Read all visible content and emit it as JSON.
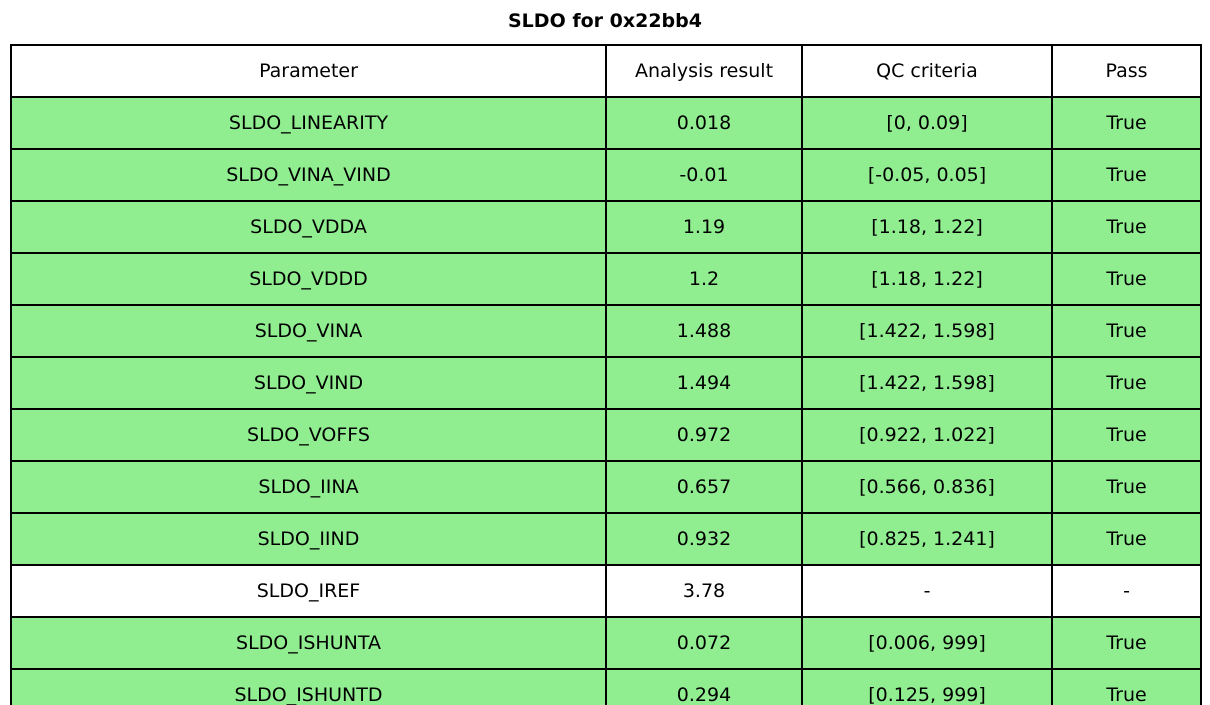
{
  "title": "SLDO for 0x22bb4",
  "colors": {
    "pass_green": "#90ee90",
    "border": "#000000",
    "background": "#ffffff"
  },
  "table": {
    "headers": [
      "Parameter",
      "Analysis result",
      "QC criteria",
      "Pass"
    ],
    "rows": [
      {
        "parameter": "SLDO_LINEARITY",
        "result": "0.018",
        "criteria": "[0, 0.09]",
        "pass": "True",
        "highlight": true
      },
      {
        "parameter": "SLDO_VINA_VIND",
        "result": "-0.01",
        "criteria": "[-0.05, 0.05]",
        "pass": "True",
        "highlight": true
      },
      {
        "parameter": "SLDO_VDDA",
        "result": "1.19",
        "criteria": "[1.18, 1.22]",
        "pass": "True",
        "highlight": true
      },
      {
        "parameter": "SLDO_VDDD",
        "result": "1.2",
        "criteria": "[1.18, 1.22]",
        "pass": "True",
        "highlight": true
      },
      {
        "parameter": "SLDO_VINA",
        "result": "1.488",
        "criteria": "[1.422, 1.598]",
        "pass": "True",
        "highlight": true
      },
      {
        "parameter": "SLDO_VIND",
        "result": "1.494",
        "criteria": "[1.422, 1.598]",
        "pass": "True",
        "highlight": true
      },
      {
        "parameter": "SLDO_VOFFS",
        "result": "0.972",
        "criteria": "[0.922, 1.022]",
        "pass": "True",
        "highlight": true
      },
      {
        "parameter": "SLDO_IINA",
        "result": "0.657",
        "criteria": "[0.566, 0.836]",
        "pass": "True",
        "highlight": true
      },
      {
        "parameter": "SLDO_IIND",
        "result": "0.932",
        "criteria": "[0.825, 1.241]",
        "pass": "True",
        "highlight": true
      },
      {
        "parameter": "SLDO_IREF",
        "result": "3.78",
        "criteria": "-",
        "pass": "-",
        "highlight": false
      },
      {
        "parameter": "SLDO_ISHUNTA",
        "result": "0.072",
        "criteria": "[0.006, 999]",
        "pass": "True",
        "highlight": true
      },
      {
        "parameter": "SLDO_ISHUNTD",
        "result": "0.294",
        "criteria": "[0.125, 999]",
        "pass": "True",
        "highlight": true
      }
    ]
  },
  "chart_data": {
    "type": "table",
    "title": "SLDO for 0x22bb4",
    "columns": [
      "Parameter",
      "Analysis result",
      "QC criteria",
      "Pass"
    ],
    "rows": [
      [
        "SLDO_LINEARITY",
        "0.018",
        "[0, 0.09]",
        "True"
      ],
      [
        "SLDO_VINA_VIND",
        "-0.01",
        "[-0.05, 0.05]",
        "True"
      ],
      [
        "SLDO_VDDA",
        "1.19",
        "[1.18, 1.22]",
        "True"
      ],
      [
        "SLDO_VDDD",
        "1.2",
        "[1.18, 1.22]",
        "True"
      ],
      [
        "SLDO_VINA",
        "1.488",
        "[1.422, 1.598]",
        "True"
      ],
      [
        "SLDO_VIND",
        "1.494",
        "[1.422, 1.598]",
        "True"
      ],
      [
        "SLDO_VOFFS",
        "0.972",
        "[0.922, 1.022]",
        "True"
      ],
      [
        "SLDO_IINA",
        "0.657",
        "[0.566, 0.836]",
        "True"
      ],
      [
        "SLDO_IIND",
        "0.932",
        "[0.825, 1.241]",
        "True"
      ],
      [
        "SLDO_IREF",
        "3.78",
        "-",
        "-"
      ],
      [
        "SLDO_ISHUNTA",
        "0.072",
        "[0.006, 999]",
        "True"
      ],
      [
        "SLDO_ISHUNTD",
        "0.294",
        "[0.125, 999]",
        "True"
      ]
    ],
    "row_colors": [
      "#90ee90",
      "#90ee90",
      "#90ee90",
      "#90ee90",
      "#90ee90",
      "#90ee90",
      "#90ee90",
      "#90ee90",
      "#90ee90",
      "#ffffff",
      "#90ee90",
      "#90ee90"
    ],
    "legend_position": "none",
    "grid": true
  }
}
